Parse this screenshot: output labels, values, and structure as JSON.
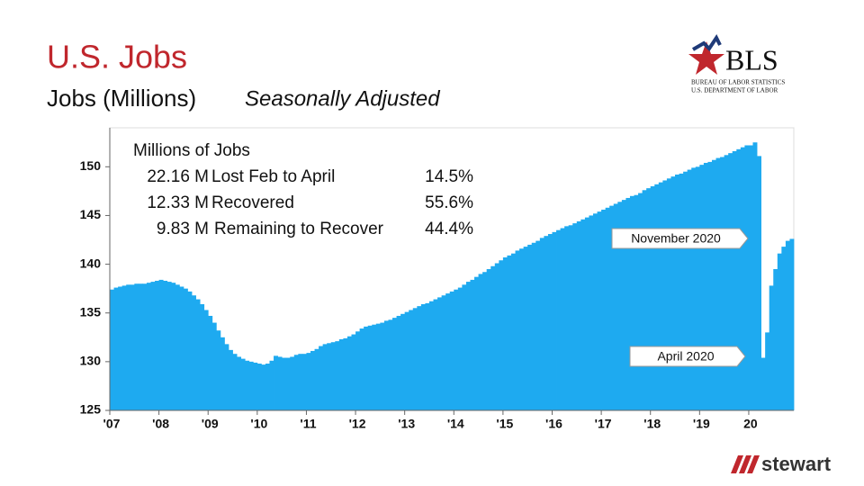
{
  "chart_data": {
    "type": "bar",
    "title": "U.S. Jobs",
    "subtitle": "Jobs (Millions)",
    "subtitle_note": "Seasonally Adjusted",
    "color": "#1eaaf0",
    "ylim": [
      125,
      154
    ],
    "yticks": [
      125,
      130,
      135,
      140,
      145,
      150
    ],
    "grid": false,
    "categories": [
      "'07",
      null,
      null,
      null,
      null,
      null,
      null,
      null,
      null,
      null,
      null,
      null,
      "'08",
      null,
      null,
      null,
      null,
      null,
      null,
      null,
      null,
      null,
      null,
      null,
      "'09",
      null,
      null,
      null,
      null,
      null,
      null,
      null,
      null,
      null,
      null,
      null,
      "'10",
      null,
      null,
      null,
      null,
      null,
      null,
      null,
      null,
      null,
      null,
      null,
      "'11",
      null,
      null,
      null,
      null,
      null,
      null,
      null,
      null,
      null,
      null,
      null,
      "'12",
      null,
      null,
      null,
      null,
      null,
      null,
      null,
      null,
      null,
      null,
      null,
      "'13",
      null,
      null,
      null,
      null,
      null,
      null,
      null,
      null,
      null,
      null,
      null,
      "'14",
      null,
      null,
      null,
      null,
      null,
      null,
      null,
      null,
      null,
      null,
      null,
      "'15",
      null,
      null,
      null,
      null,
      null,
      null,
      null,
      null,
      null,
      null,
      null,
      "'16",
      null,
      null,
      null,
      null,
      null,
      null,
      null,
      null,
      null,
      null,
      null,
      "'17",
      null,
      null,
      null,
      null,
      null,
      null,
      null,
      null,
      null,
      null,
      null,
      "'18",
      null,
      null,
      null,
      null,
      null,
      null,
      null,
      null,
      null,
      null,
      null,
      "'19",
      null,
      null,
      null,
      null,
      null,
      null,
      null,
      null,
      null,
      null,
      null,
      "20",
      null,
      null,
      null,
      null,
      null,
      null,
      null,
      null,
      null,
      null
    ],
    "values": [
      137.4,
      137.6,
      137.7,
      137.8,
      137.9,
      137.9,
      138.0,
      138.0,
      138.0,
      138.1,
      138.2,
      138.3,
      138.4,
      138.3,
      138.2,
      138.1,
      137.9,
      137.7,
      137.5,
      137.2,
      136.8,
      136.4,
      135.9,
      135.3,
      134.7,
      134.0,
      133.2,
      132.5,
      131.8,
      131.2,
      130.8,
      130.5,
      130.3,
      130.1,
      130.0,
      129.9,
      129.8,
      129.7,
      129.8,
      130.1,
      130.6,
      130.5,
      130.4,
      130.4,
      130.5,
      130.7,
      130.8,
      130.8,
      130.9,
      131.1,
      131.3,
      131.6,
      131.8,
      131.9,
      132.0,
      132.1,
      132.3,
      132.4,
      132.6,
      132.8,
      133.1,
      133.4,
      133.6,
      133.7,
      133.8,
      133.9,
      134.0,
      134.2,
      134.3,
      134.5,
      134.7,
      134.9,
      135.1,
      135.3,
      135.5,
      135.7,
      135.9,
      136.0,
      136.2,
      136.4,
      136.6,
      136.8,
      137.0,
      137.2,
      137.4,
      137.6,
      137.9,
      138.2,
      138.4,
      138.7,
      139.0,
      139.2,
      139.5,
      139.8,
      140.1,
      140.4,
      140.7,
      140.9,
      141.1,
      141.4,
      141.6,
      141.8,
      142.0,
      142.2,
      142.4,
      142.7,
      142.9,
      143.1,
      143.3,
      143.5,
      143.7,
      143.9,
      144.0,
      144.2,
      144.4,
      144.6,
      144.8,
      145.0,
      145.2,
      145.4,
      145.6,
      145.8,
      146.0,
      146.2,
      146.4,
      146.6,
      146.8,
      147.0,
      147.1,
      147.3,
      147.6,
      147.8,
      148.0,
      148.2,
      148.4,
      148.6,
      148.8,
      149.0,
      149.2,
      149.3,
      149.5,
      149.7,
      149.9,
      150.0,
      150.2,
      150.4,
      150.5,
      150.7,
      150.9,
      151.0,
      151.2,
      151.4,
      151.6,
      151.8,
      152.0,
      152.2,
      152.2,
      152.5,
      151.1,
      130.4,
      133.0,
      137.8,
      139.5,
      141.1,
      141.8,
      142.4,
      142.6
    ],
    "stats": {
      "title": "Millions of Jobs",
      "rows": [
        {
          "amount": "22.16 M",
          "label": "Lost Feb to April",
          "share": "14.5%"
        },
        {
          "amount": "12.33 M",
          "label": "Recovered",
          "share": "55.6%"
        },
        {
          "amount": "9.83 M",
          "label": "Remaining to Recover",
          "share": "44.4%"
        }
      ]
    },
    "callouts": [
      "November 2020",
      "April 2020"
    ]
  },
  "logos": {
    "bls": {
      "name": "BLS",
      "line1": "BUREAU OF LABOR STATISTICS",
      "line2": "U.S. DEPARTMENT OF LABOR"
    },
    "stewart": "stewart"
  }
}
